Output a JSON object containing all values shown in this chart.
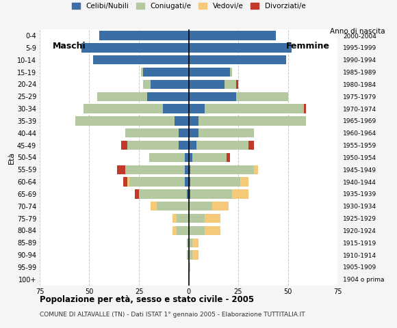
{
  "age_groups": [
    "100+",
    "95-99",
    "90-94",
    "85-89",
    "80-84",
    "75-79",
    "70-74",
    "65-69",
    "60-64",
    "55-59",
    "50-54",
    "45-49",
    "40-44",
    "35-39",
    "30-34",
    "25-29",
    "20-24",
    "15-19",
    "10-14",
    "5-9",
    "0-4"
  ],
  "birth_years": [
    "1904 o prima",
    "1905-1909",
    "1910-1914",
    "1915-1919",
    "1920-1924",
    "1925-1929",
    "1930-1934",
    "1935-1939",
    "1940-1944",
    "1945-1949",
    "1950-1954",
    "1955-1959",
    "1960-1964",
    "1965-1969",
    "1970-1974",
    "1975-1979",
    "1980-1984",
    "1985-1989",
    "1990-1994",
    "1995-1999",
    "2000-2004"
  ],
  "colors": {
    "celibe": "#3a6ea5",
    "coniugato": "#b5c9a0",
    "vedovo": "#f5c97a",
    "divorziato": "#c0392b"
  },
  "males": {
    "celibe": [
      0,
      0,
      0,
      0,
      0,
      0,
      0,
      1,
      2,
      2,
      2,
      5,
      5,
      7,
      13,
      21,
      19,
      23,
      48,
      54,
      45
    ],
    "coniugato": [
      0,
      0,
      1,
      1,
      6,
      6,
      16,
      24,
      28,
      30,
      18,
      26,
      27,
      50,
      40,
      25,
      4,
      1,
      0,
      0,
      0
    ],
    "vedovo": [
      0,
      0,
      0,
      0,
      2,
      2,
      3,
      0,
      1,
      0,
      0,
      0,
      0,
      0,
      0,
      0,
      0,
      0,
      0,
      0,
      0
    ],
    "divorziato": [
      0,
      0,
      0,
      0,
      0,
      0,
      0,
      2,
      2,
      4,
      0,
      3,
      0,
      0,
      0,
      0,
      0,
      0,
      0,
      0,
      0
    ]
  },
  "females": {
    "nubile": [
      0,
      0,
      0,
      0,
      0,
      0,
      0,
      1,
      1,
      1,
      2,
      4,
      5,
      5,
      8,
      24,
      18,
      21,
      49,
      52,
      44
    ],
    "coniugata": [
      0,
      0,
      2,
      2,
      8,
      8,
      12,
      21,
      25,
      32,
      17,
      26,
      28,
      54,
      50,
      26,
      6,
      1,
      0,
      0,
      0
    ],
    "vedova": [
      0,
      1,
      3,
      3,
      8,
      8,
      8,
      8,
      4,
      2,
      0,
      0,
      0,
      0,
      0,
      0,
      0,
      0,
      0,
      0,
      0
    ],
    "divorziata": [
      0,
      0,
      0,
      0,
      0,
      0,
      0,
      0,
      0,
      0,
      2,
      3,
      0,
      0,
      1,
      0,
      1,
      0,
      0,
      0,
      0
    ]
  },
  "xlim": 75,
  "title": "Popolazione per età, sesso e stato civile - 2005",
  "subtitle": "COMUNE DI ALTAVALLE (TN) - Dati ISTAT 1° gennaio 2005 - Elaborazione TUTTITALIA.IT",
  "xlabel_left": "Maschi",
  "xlabel_right": "Femmine",
  "ylabel": "Età",
  "ylabel_right": "Anno di nascita",
  "bg_color": "#f5f5f5",
  "plot_bg": "#ffffff"
}
